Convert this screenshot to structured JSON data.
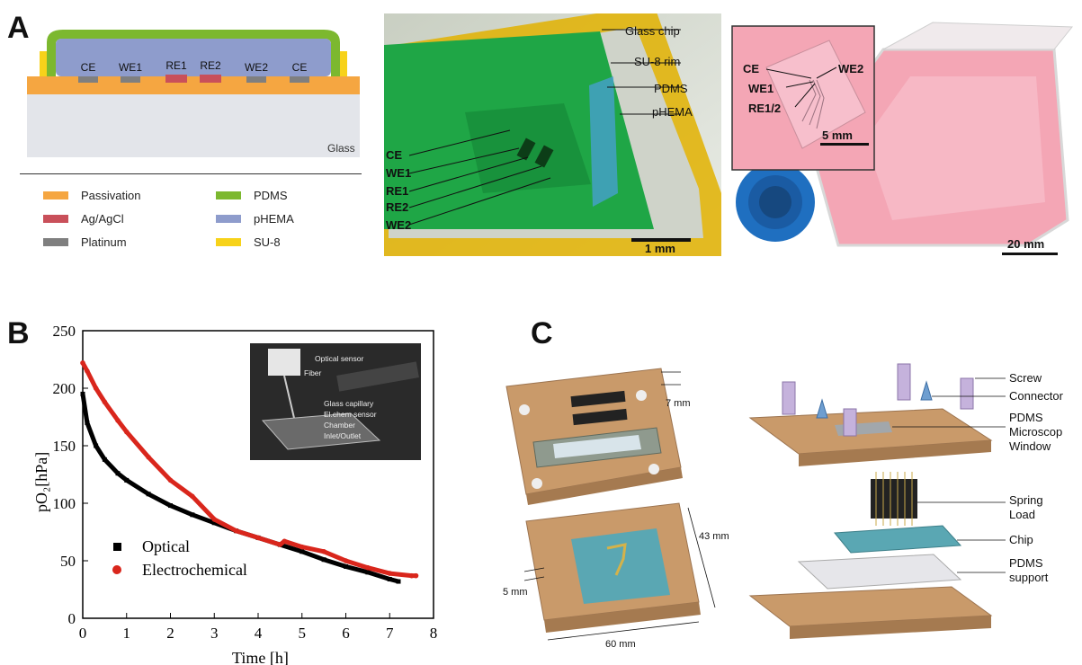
{
  "panels": {
    "a": "A",
    "b": "B",
    "c": "C"
  },
  "cross_section": {
    "electrodes": [
      "CE",
      "WE1",
      "RE1",
      "RE2",
      "WE2",
      "CE"
    ],
    "substrate_label": "Glass",
    "legend": [
      {
        "label": "Passivation",
        "color": "#f5a641"
      },
      {
        "label": "PDMS",
        "color": "#7cb82f"
      },
      {
        "label": "Ag/AgCl",
        "color": "#c9505a"
      },
      {
        "label": "pHEMA",
        "color": "#8e9ccc"
      },
      {
        "label": "Platinum",
        "color": "#7f7f7f"
      },
      {
        "label": "SU-8",
        "color": "#f7d21a"
      }
    ]
  },
  "chip_photo": {
    "layer_labels": [
      "Glass chip",
      "SU-8 rim",
      "PDMS",
      "pHEMA"
    ],
    "electrode_labels": [
      "CE",
      "WE1",
      "RE1",
      "RE2",
      "WE2"
    ],
    "scale_bar": "1 mm"
  },
  "flask_photo": {
    "labels": [
      "CE",
      "WE2",
      "WE1",
      "RE1/2"
    ],
    "inset_scale_bar": "5 mm",
    "scale_bar": "20 mm"
  },
  "chart_data": {
    "type": "line",
    "xlabel": "Time [h]",
    "ylabel": "pO₂[hPa]",
    "xlim": [
      0,
      8
    ],
    "ylim": [
      0,
      250
    ],
    "xticks": [
      0,
      1,
      2,
      3,
      4,
      5,
      6,
      7,
      8
    ],
    "yticks": [
      0,
      50,
      100,
      150,
      200,
      250
    ],
    "legend_position": "bottom-left",
    "series": [
      {
        "name": "Optical",
        "color": "#000000",
        "marker": "square",
        "x": [
          0,
          0.1,
          0.3,
          0.5,
          0.8,
          1.0,
          1.5,
          2.0,
          2.5,
          3.0,
          3.5,
          4.0,
          4.5,
          5.0,
          5.5,
          6.0,
          6.5,
          7.0,
          7.2
        ],
        "y": [
          195,
          170,
          150,
          138,
          126,
          120,
          108,
          98,
          90,
          83,
          76,
          70,
          64,
          58,
          51,
          45,
          40,
          34,
          32
        ]
      },
      {
        "name": "Electrochemical",
        "color": "#d9261c",
        "marker": "circle",
        "x": [
          0,
          0.1,
          0.3,
          0.5,
          0.8,
          1.0,
          1.5,
          2.0,
          2.5,
          3.0,
          3.5,
          4.0,
          4.5,
          4.6,
          5.0,
          5.5,
          6.0,
          6.5,
          7.0,
          7.5,
          7.6
        ],
        "y": [
          222,
          215,
          200,
          188,
          172,
          162,
          140,
          120,
          106,
          86,
          76,
          70,
          64,
          67,
          62,
          58,
          50,
          44,
          39,
          37,
          37
        ]
      }
    ],
    "inset": {
      "labels": [
        "Optical sensor",
        "Fiber",
        "Glass capillary",
        "El.chem sensor",
        "Chamber",
        "Inlet/Outlet"
      ]
    }
  },
  "holder": {
    "dims": [
      "7 mm",
      "43 mm",
      "5 mm",
      "60 mm"
    ],
    "parts": [
      "Screw",
      "Connector",
      "PDMS",
      "Microscop",
      "Window",
      "Spring",
      "Load",
      "Chip",
      "PDMS",
      "support"
    ]
  }
}
